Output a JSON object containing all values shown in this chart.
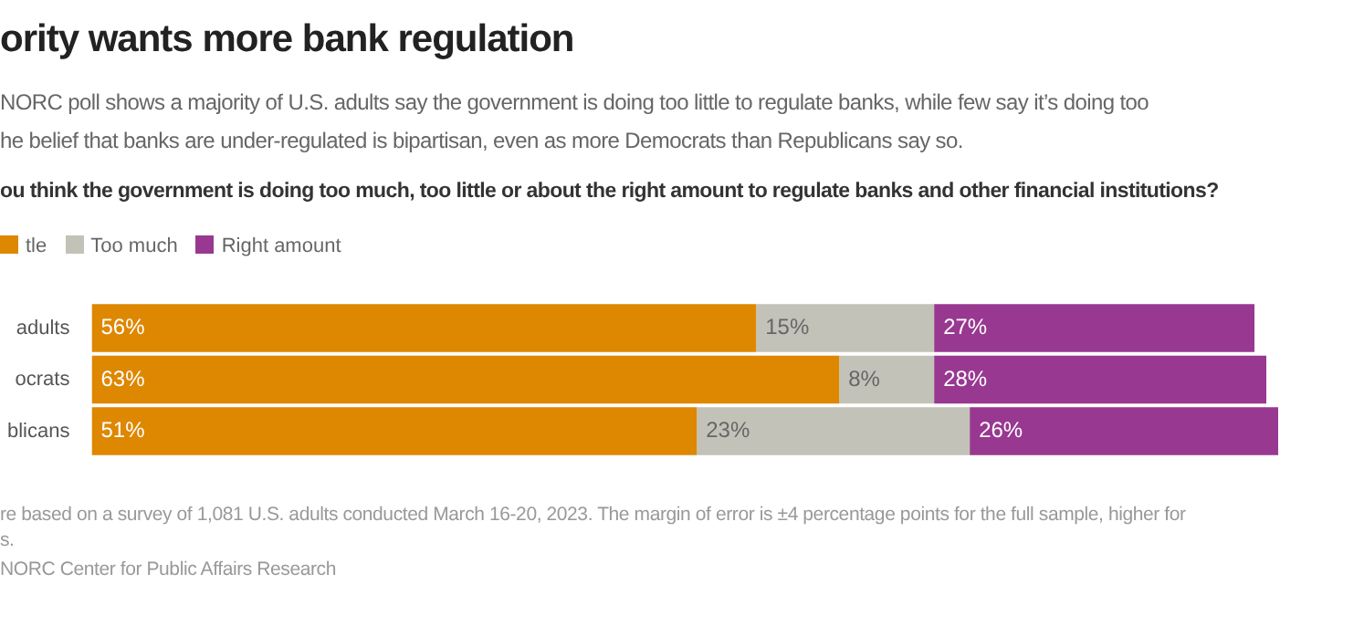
{
  "chart_data": {
    "type": "bar",
    "orientation": "horizontal",
    "stacked": true,
    "title": "ority wants more bank regulation",
    "subtitle": "NORC poll shows a majority of U.S. adults say the government is doing too little to regulate banks, while few say it’s doing too\nhe belief that banks are under-regulated is bipartisan, even as more Democrats than Republicans say so.",
    "xlabel": "ou think the government is doing too much, too little or about the right amount to regulate banks and other financial institutions?",
    "annotations": [
      "re based on a survey of 1,081 U.S. adults conducted March 16-20, 2023. The margin of error is ±4 percentage points for the full sample, higher for\ns.",
      "NORC Center for Public Affairs Research"
    ],
    "legend": "top left",
    "categories": [
      "adults",
      "ocrats",
      "blicans"
    ],
    "series": [
      {
        "name": "tle",
        "color": "#de8700",
        "values": [
          56,
          63,
          51
        ],
        "value_labels": [
          "56%",
          "63%",
          "51%"
        ]
      },
      {
        "name": "Too much",
        "color": "#c2c2b8",
        "values": [
          15,
          8,
          23
        ],
        "value_labels": [
          "15%",
          "8%",
          "23%"
        ]
      },
      {
        "name": "Right amount",
        "color": "#983891",
        "values": [
          27,
          28,
          26
        ],
        "value_labels": [
          "27%",
          "28%",
          "26%"
        ]
      }
    ]
  }
}
